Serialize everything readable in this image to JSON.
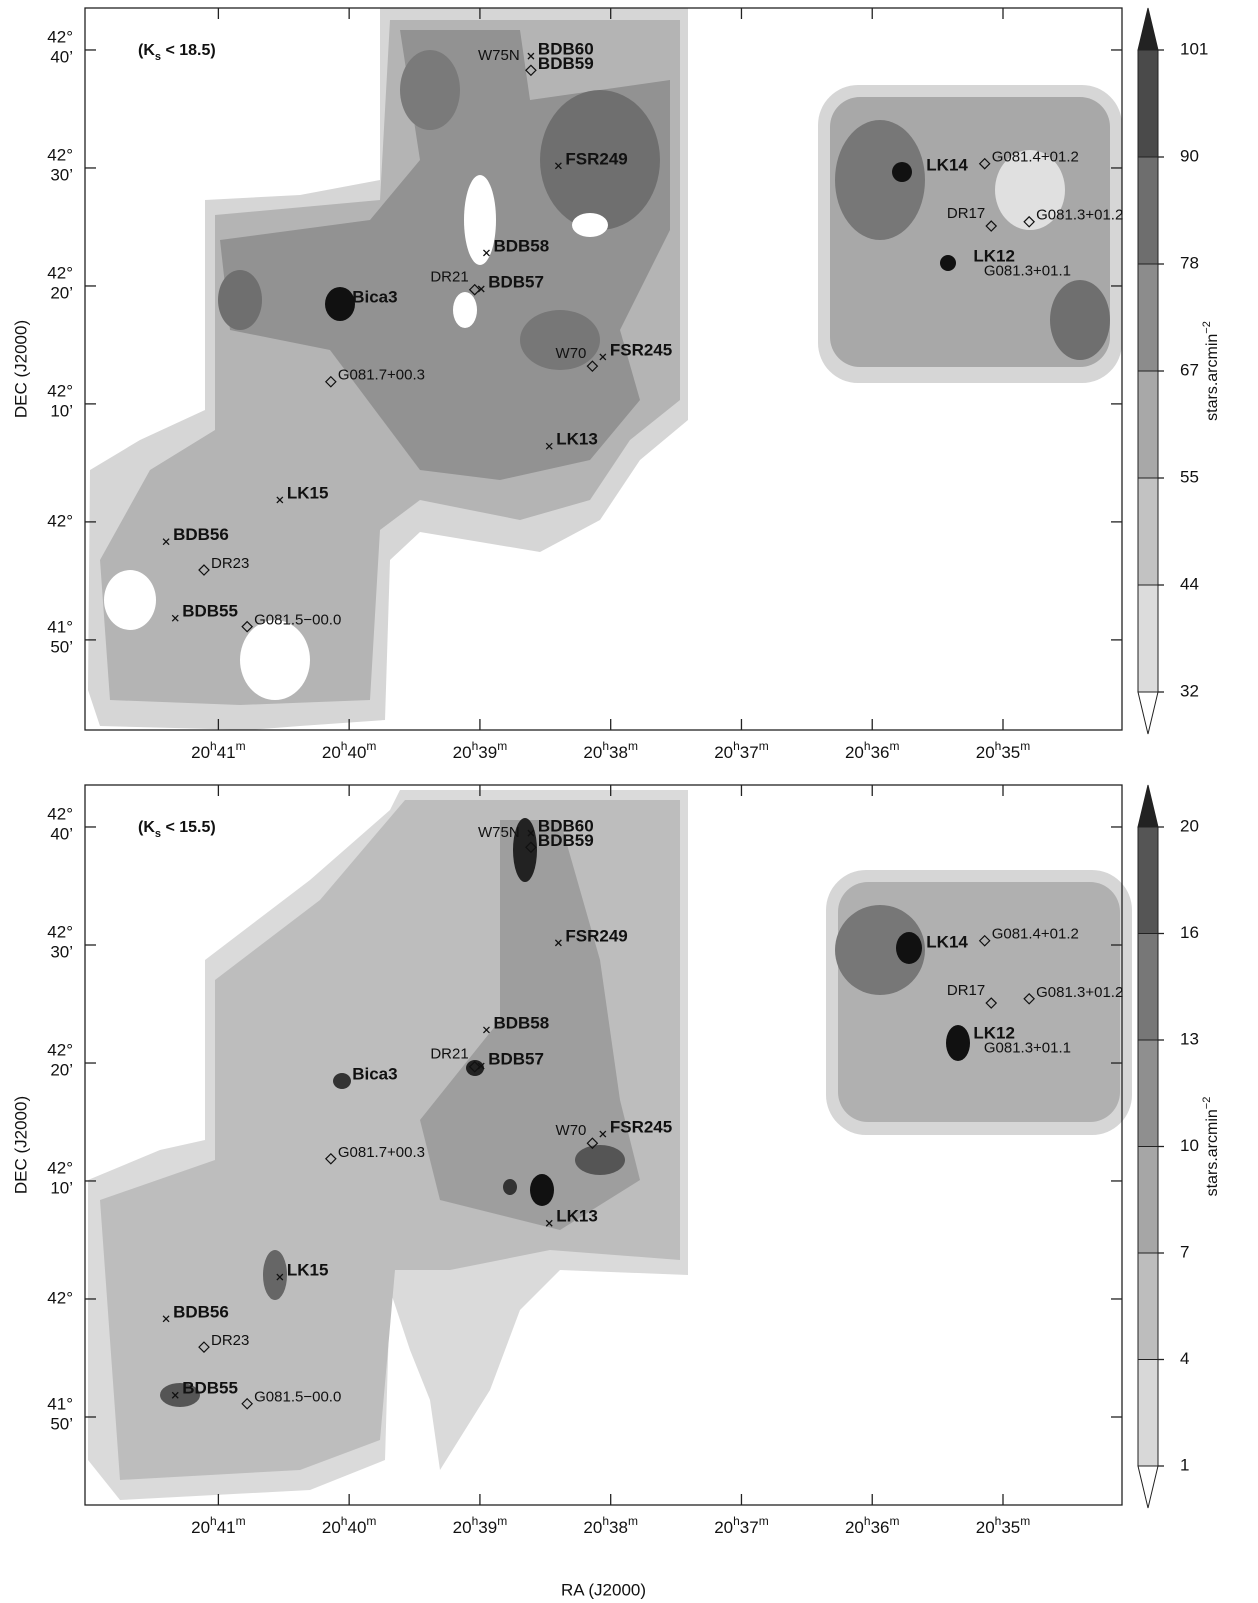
{
  "chart_data": [
    {
      "type": "contour-map",
      "label_parts": [
        "(K",
        "s",
        " < 18.5)"
      ],
      "y_label": "DEC (J2000)",
      "xlim": [
        42.02,
        34.09
      ],
      "xticks": [
        {
          "value": 41,
          "label": "20h41m"
        },
        {
          "value": 40,
          "label": "20h40m"
        },
        {
          "value": 39,
          "label": "20h39m"
        },
        {
          "value": 38,
          "label": "20h38m"
        },
        {
          "value": 37,
          "label": "20h37m"
        },
        {
          "value": 36,
          "label": "20h36m"
        },
        {
          "value": 35,
          "label": "20h35m"
        }
      ],
      "ylim": [
        41.706,
        42.726
      ],
      "yticks": [
        {
          "value": 42.6667,
          "label": [
            "42°",
            "40’"
          ]
        },
        {
          "value": 42.5,
          "label": [
            "42°",
            "30’"
          ]
        },
        {
          "value": 42.3333,
          "label": [
            "42°",
            "20’"
          ]
        },
        {
          "value": 42.1667,
          "label": [
            "42°",
            "10’"
          ]
        },
        {
          "value": 42,
          "label": [
            "42°"
          ]
        },
        {
          "value": 41.8333,
          "label": [
            "41°",
            "50’"
          ]
        }
      ],
      "colorbar": {
        "levels": [
          32,
          44,
          55,
          67,
          78,
          90,
          101
        ],
        "colors": [
          "#dcdcdc",
          "#c2c2c2",
          "#a8a8a8",
          "#8c8c8c",
          "#6e6e6e",
          "#4a4a4a"
        ],
        "over_color": "#222222",
        "under_color": "#ffffff",
        "label": "stars.arcmin",
        "label_sup": "−2"
      }
    },
    {
      "type": "contour-map",
      "label_parts": [
        "(K",
        "s",
        " < 15.5)"
      ],
      "y_label": "DEC (J2000)",
      "x_label": "RA (J2000)",
      "xlim": [
        42.02,
        34.09
      ],
      "xticks": [
        {
          "value": 41,
          "label": "20h41m"
        },
        {
          "value": 40,
          "label": "20h40m"
        },
        {
          "value": 39,
          "label": "20h39m"
        },
        {
          "value": 38,
          "label": "20h38m"
        },
        {
          "value": 37,
          "label": "20h37m"
        },
        {
          "value": 36,
          "label": "20h36m"
        },
        {
          "value": 35,
          "label": "20h35m"
        }
      ],
      "ylim": [
        41.709,
        42.726
      ],
      "yticks": [
        {
          "value": 42.6667,
          "label": [
            "42°",
            "40’"
          ]
        },
        {
          "value": 42.5,
          "label": [
            "42°",
            "30’"
          ]
        },
        {
          "value": 42.3333,
          "label": [
            "42°",
            "20’"
          ]
        },
        {
          "value": 42.1667,
          "label": [
            "42°",
            "10’"
          ]
        },
        {
          "value": 42,
          "label": [
            "42°"
          ]
        },
        {
          "value": 41.8333,
          "label": [
            "41°",
            "50’"
          ]
        }
      ],
      "colorbar": {
        "levels": [
          1,
          4,
          7,
          10,
          13,
          16,
          20
        ],
        "colors": [
          "#d8d8d8",
          "#bdbdbd",
          "#a6a6a6",
          "#8f8f8f",
          "#777777",
          "#555555"
        ],
        "over_color": "#222222",
        "under_color": "#ffffff",
        "label": "stars.arcmin",
        "label_sup": "−2"
      }
    }
  ],
  "objects": [
    {
      "label": "BDB60",
      "x": 38.61,
      "y": 42.658,
      "marker": "x",
      "bold": true
    },
    {
      "label": "BDB59",
      "x": 38.61,
      "y": 42.638,
      "marker": "diamond",
      "bold": true
    },
    {
      "label": "W75N",
      "x": 38.65,
      "y": 42.65,
      "marker": "none",
      "bold": false,
      "side": "left"
    },
    {
      "label": "FSR249",
      "x": 38.4,
      "y": 42.503,
      "marker": "x",
      "bold": true
    },
    {
      "label": "LK14",
      "x": 35.64,
      "y": 42.494,
      "marker": "none",
      "bold": true
    },
    {
      "label": "G081.4+01.2",
      "x": 35.14,
      "y": 42.506,
      "marker": "diamond",
      "bold": false
    },
    {
      "label": "DR17",
      "x": 35.09,
      "y": 42.418,
      "marker": "diamond",
      "bold": false,
      "side": "left"
    },
    {
      "label": "G081.3+01.2",
      "x": 34.8,
      "y": 42.424,
      "marker": "diamond",
      "bold": false
    },
    {
      "label": "LK12",
      "x": 35.28,
      "y": 42.366,
      "marker": "none",
      "bold": true
    },
    {
      "label": "G081.3+01.1",
      "x": 35.2,
      "y": 42.345,
      "marker": "none",
      "bold": false
    },
    {
      "label": "BDB58",
      "x": 38.95,
      "y": 42.38,
      "marker": "x",
      "bold": true
    },
    {
      "label": "DR21",
      "x": 39.04,
      "y": 42.328,
      "marker": "diamond",
      "bold": false,
      "side": "left"
    },
    {
      "label": "BDB57",
      "x": 38.99,
      "y": 42.329,
      "marker": "x",
      "bold": true
    },
    {
      "label": "Bica3",
      "x": 40.03,
      "y": 42.308,
      "marker": "none",
      "bold": true
    },
    {
      "label": "W70",
      "x": 38.14,
      "y": 42.22,
      "marker": "diamond",
      "bold": false,
      "side": "left"
    },
    {
      "label": "FSR245",
      "x": 38.06,
      "y": 42.233,
      "marker": "x",
      "bold": true
    },
    {
      "label": "G081.7+00.3",
      "x": 40.14,
      "y": 42.198,
      "marker": "diamond",
      "bold": false
    },
    {
      "label": "LK13",
      "x": 38.47,
      "y": 42.107,
      "marker": "x",
      "bold": true
    },
    {
      "label": "LK15",
      "x": 40.53,
      "y": 42.031,
      "marker": "x",
      "bold": true
    },
    {
      "label": "BDB56",
      "x": 41.4,
      "y": 41.972,
      "marker": "x",
      "bold": true
    },
    {
      "label": "DR23",
      "x": 41.11,
      "y": 41.932,
      "marker": "diamond",
      "bold": false
    },
    {
      "label": "BDB55",
      "x": 41.33,
      "y": 41.864,
      "marker": "x",
      "bold": true
    },
    {
      "label": "G081.5−00.0",
      "x": 40.78,
      "y": 41.852,
      "marker": "diamond",
      "bold": false
    }
  ]
}
